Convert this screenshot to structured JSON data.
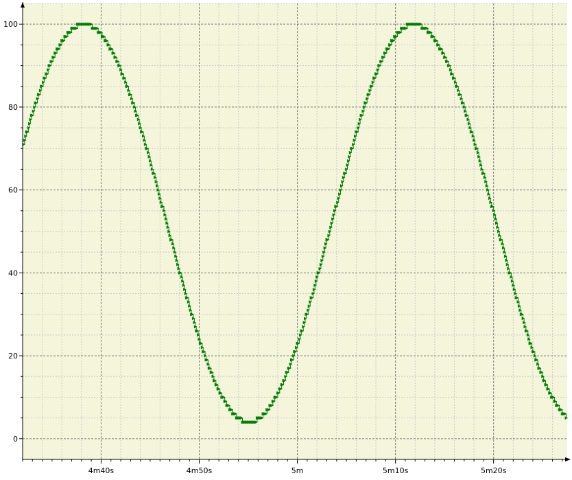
{
  "chart_data": {
    "type": "line",
    "title": "",
    "xlabel": "",
    "ylabel": "",
    "xlim": [
      272,
      327.5
    ],
    "ylim": [
      -5,
      105
    ],
    "x_ticks": [
      {
        "value": 280,
        "label": "4m40s"
      },
      {
        "value": 290,
        "label": "4m50s"
      },
      {
        "value": 300,
        "label": "5m"
      },
      {
        "value": 310,
        "label": "5m10s"
      },
      {
        "value": 320,
        "label": "5m20s"
      }
    ],
    "y_ticks": [
      0,
      20,
      40,
      60,
      80,
      100
    ],
    "grid": true,
    "colors": {
      "plot_background": "#f5f5dc",
      "major_grid": "#7a7a7a",
      "minor_grid": "#c9c9c9",
      "line": "#008000",
      "marker_primary": "#008000",
      "marker_secondary": "#0000cc",
      "axis": "#000000"
    },
    "series": [
      {
        "style": "step",
        "x_start": 272.1,
        "x_step": 0.1,
        "formula": "round(52 + 48*sin(2*pi*(x-269.9)/33.6))"
      }
    ]
  }
}
